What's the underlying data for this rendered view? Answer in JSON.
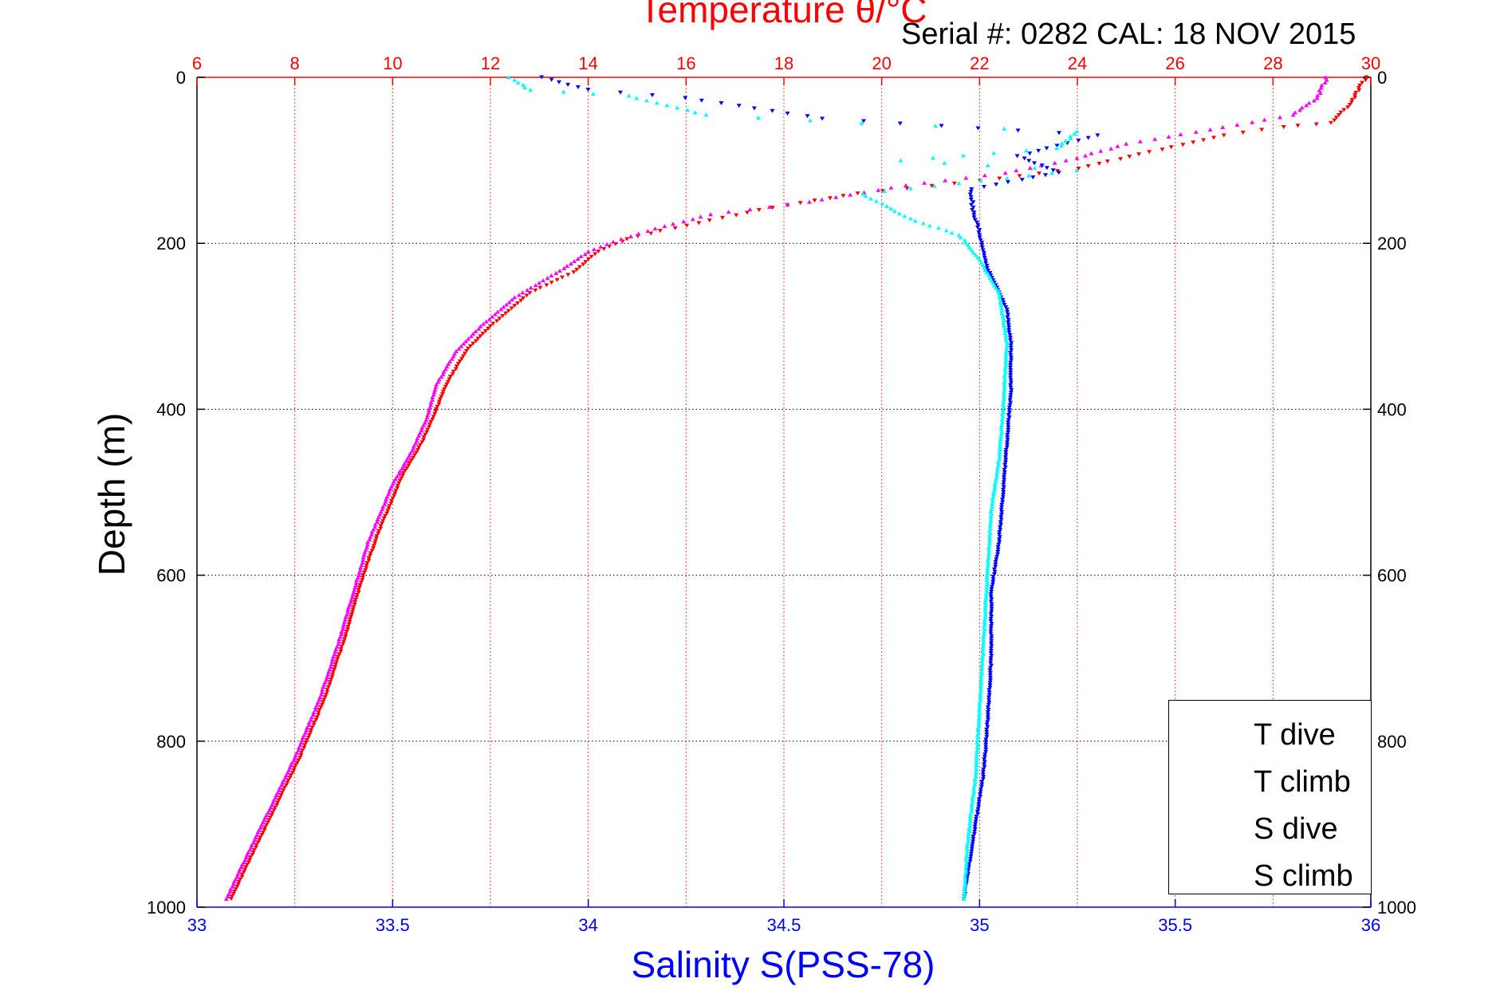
{
  "chart_data": {
    "type": "scatter",
    "title": "Temperature θ/°C",
    "annotation": "Serial #: 0282  CAL: 18 NOV 2015",
    "ylabel": "Depth (m)",
    "xlabel": "Salinity S(PSS-78)",
    "x_top_label": "Temperature θ/°C",
    "ylim": [
      0,
      1000
    ],
    "y_reversed": true,
    "y_ticks": [
      "0",
      "200",
      "400",
      "600",
      "800",
      "1000"
    ],
    "temperature_axis": {
      "range": [
        6,
        30
      ],
      "ticks": [
        "6",
        "8",
        "10",
        "12",
        "14",
        "16",
        "18",
        "20",
        "22",
        "24",
        "26",
        "28",
        "30"
      ],
      "color": "#ff0000"
    },
    "salinity_axis": {
      "range": [
        33,
        36
      ],
      "ticks": [
        "33",
        "33.5",
        "34",
        "34.5",
        "35",
        "35.5",
        "36"
      ],
      "color": "#0000ff"
    },
    "grid": true,
    "legend_position": "bottom-right",
    "series": [
      {
        "name": "T dive",
        "axis": "temperature",
        "color": "#ff0000",
        "marker": "triangle-down",
        "points": [
          [
            29.9,
            0
          ],
          [
            29.8,
            10
          ],
          [
            29.6,
            30
          ],
          [
            29.2,
            55
          ],
          [
            28.2,
            60
          ],
          [
            27.0,
            70
          ],
          [
            25.5,
            90
          ],
          [
            24.0,
            110
          ],
          [
            22.0,
            125
          ],
          [
            19.5,
            140
          ],
          [
            17.5,
            160
          ],
          [
            15.5,
            185
          ],
          [
            14.8,
            195
          ],
          [
            14.2,
            210
          ],
          [
            13.7,
            235
          ],
          [
            12.8,
            260
          ],
          [
            12.0,
            300
          ],
          [
            11.5,
            330
          ],
          [
            11.1,
            370
          ],
          [
            10.9,
            400
          ],
          [
            10.6,
            440
          ],
          [
            10.2,
            480
          ],
          [
            9.7,
            550
          ],
          [
            9.4,
            600
          ],
          [
            9.0,
            680
          ],
          [
            8.6,
            750
          ],
          [
            8.1,
            820
          ],
          [
            7.6,
            880
          ],
          [
            7.1,
            940
          ],
          [
            6.7,
            990
          ]
        ]
      },
      {
        "name": "T climb",
        "axis": "temperature",
        "color": "#ff00ff",
        "marker": "triangle-up",
        "points": [
          [
            29.1,
            0
          ],
          [
            28.9,
            25
          ],
          [
            28.4,
            45
          ],
          [
            27.0,
            60
          ],
          [
            25.0,
            80
          ],
          [
            23.8,
            100
          ],
          [
            22.5,
            115
          ],
          [
            20.5,
            130
          ],
          [
            18.5,
            150
          ],
          [
            16.5,
            165
          ],
          [
            15.2,
            185
          ],
          [
            14.5,
            198
          ],
          [
            14.0,
            210
          ],
          [
            13.5,
            230
          ],
          [
            12.5,
            265
          ],
          [
            11.8,
            300
          ],
          [
            11.3,
            330
          ],
          [
            10.9,
            370
          ],
          [
            10.7,
            410
          ],
          [
            10.4,
            450
          ],
          [
            10.0,
            490
          ],
          [
            9.5,
            560
          ],
          [
            9.3,
            600
          ],
          [
            8.9,
            680
          ],
          [
            8.5,
            750
          ],
          [
            8.0,
            820
          ],
          [
            7.5,
            880
          ],
          [
            7.0,
            940
          ],
          [
            6.6,
            990
          ]
        ]
      },
      {
        "name": "S dive",
        "axis": "salinity",
        "color": "#0000ff",
        "marker": "triangle-down",
        "points": [
          [
            33.88,
            0
          ],
          [
            34.0,
            15
          ],
          [
            34.25,
            25
          ],
          [
            34.6,
            50
          ],
          [
            35.3,
            70
          ],
          [
            35.1,
            95
          ],
          [
            35.2,
            115
          ],
          [
            34.98,
            135
          ],
          [
            34.98,
            160
          ],
          [
            35.0,
            190
          ],
          [
            35.02,
            230
          ],
          [
            35.07,
            280
          ],
          [
            35.08,
            320
          ],
          [
            35.08,
            380
          ],
          [
            35.07,
            440
          ],
          [
            35.06,
            500
          ],
          [
            35.05,
            560
          ],
          [
            35.03,
            620
          ],
          [
            35.03,
            700
          ],
          [
            35.02,
            780
          ],
          [
            35.01,
            840
          ],
          [
            34.99,
            900
          ],
          [
            34.97,
            960
          ],
          [
            34.96,
            990
          ]
        ]
      },
      {
        "name": "S climb",
        "axis": "salinity",
        "color": "#00ffff",
        "marker": "triangle-up",
        "points": [
          [
            33.8,
            0
          ],
          [
            33.85,
            15
          ],
          [
            34.1,
            22
          ],
          [
            34.3,
            45
          ],
          [
            34.7,
            55
          ],
          [
            35.25,
            65
          ],
          [
            35.2,
            85
          ],
          [
            34.8,
            100
          ],
          [
            35.25,
            112
          ],
          [
            34.7,
            140
          ],
          [
            34.82,
            170
          ],
          [
            34.95,
            190
          ],
          [
            35.0,
            220
          ],
          [
            35.05,
            260
          ],
          [
            35.07,
            320
          ],
          [
            35.06,
            400
          ],
          [
            35.05,
            460
          ],
          [
            35.03,
            520
          ],
          [
            35.02,
            600
          ],
          [
            35.01,
            680
          ],
          [
            35.0,
            760
          ],
          [
            34.99,
            840
          ],
          [
            34.97,
            920
          ],
          [
            34.96,
            990
          ]
        ]
      }
    ]
  }
}
